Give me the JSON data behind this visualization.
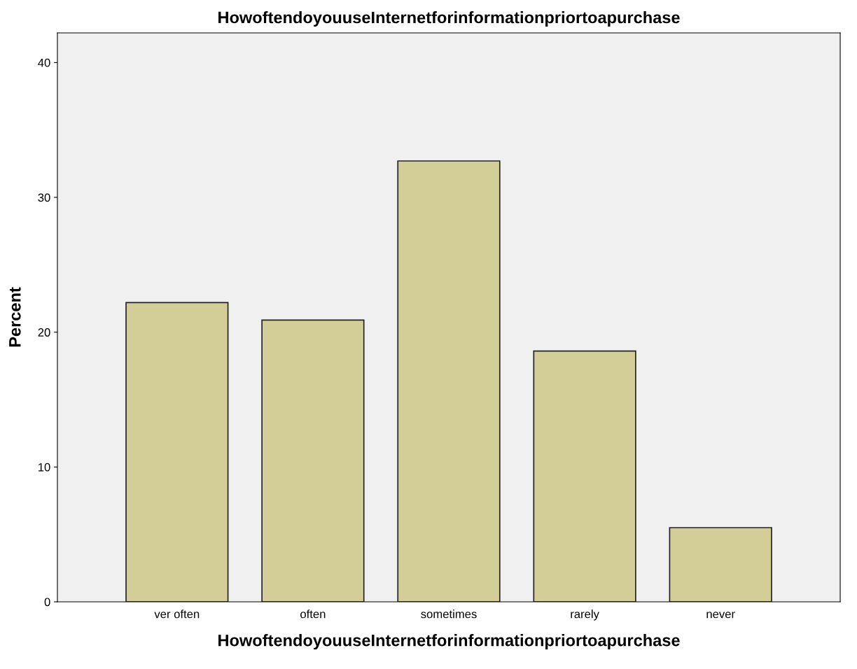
{
  "chart_data": {
    "type": "bar",
    "title": "HowoftendoyouuseInternetforinformationpriortoapurchase",
    "xlabel": "HowoftendoyouuseInternetforinformationpriortoapurchase",
    "ylabel": "Percent",
    "categories": [
      "ver often",
      "often",
      "sometimes",
      "rarely",
      "never"
    ],
    "values": [
      22.2,
      20.9,
      32.7,
      18.6,
      5.5
    ],
    "color": "#d3ce97",
    "ylim": [
      0,
      42.2
    ],
    "yticks": [
      0,
      10,
      20,
      30,
      40
    ],
    "grid": false,
    "legend": false
  }
}
